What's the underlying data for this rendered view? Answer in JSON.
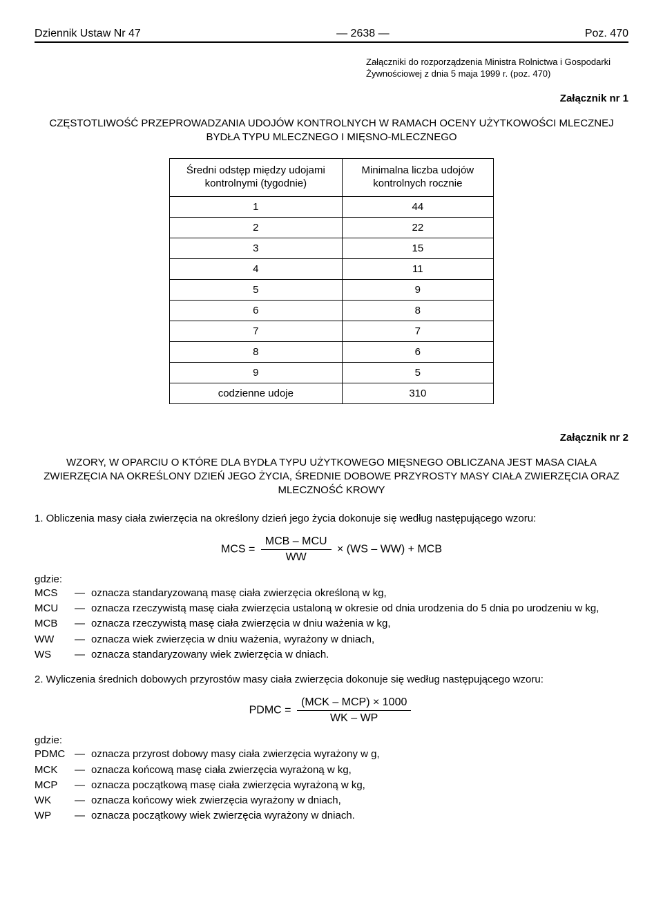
{
  "header": {
    "left": "Dziennik Ustaw Nr 47",
    "center": "— 2638 —",
    "right": "Poz. 470"
  },
  "attachment_note": "Załączniki do rozporządzenia Ministra Rolnictwa i Gospodarki Żywnościowej z dnia 5 maja 1999 r. (poz. 470)",
  "attachment1": {
    "label": "Załącznik nr 1",
    "title": "CZĘSTOTLIWOŚĆ PRZEPROWADZANIA UDOJÓW KONTROLNYCH W RAMACH OCENY UŻYTKOWOŚCI MLECZNEJ BYDŁA TYPU MLECZNEGO I MIĘSNO-MLECZNEGO",
    "table": {
      "col1_header": "Średni odstęp między udojami kontrolnymi (tygodnie)",
      "col2_header": "Minimalna liczba udojów kontrolnych rocznie",
      "rows": [
        [
          "1",
          "44"
        ],
        [
          "2",
          "22"
        ],
        [
          "3",
          "15"
        ],
        [
          "4",
          "11"
        ],
        [
          "5",
          "9"
        ],
        [
          "6",
          "8"
        ],
        [
          "7",
          "7"
        ],
        [
          "8",
          "6"
        ],
        [
          "9",
          "5"
        ],
        [
          "codzienne udoje",
          "310"
        ]
      ]
    }
  },
  "attachment2": {
    "label": "Załącznik nr 2",
    "title": "WZORY, W OPARCIU O KTÓRE DLA BYDŁA TYPU UŻYTKOWEGO MIĘSNEGO OBLICZANA JEST MASA CIAŁA ZWIERZĘCIA NA OKREŚLONY DZIEŃ JEGO ŻYCIA, ŚREDNIE DOBOWE PRZYROSTY MASY CIAŁA ZWIERZĘCIA ORAZ MLECZNOŚĆ KROWY",
    "section1": {
      "intro": "1. Obliczenia masy ciała zwierzęcia na określony dzień jego życia dokonuje się według następującego wzoru:",
      "formula": {
        "lhs": "MCS =",
        "num": "MCB – MCU",
        "den": "WW",
        "tail": "× (WS – WW) + MCB"
      },
      "where": "gdzie:",
      "defs": [
        {
          "sym": "MCS",
          "desc": "oznacza standaryzowaną masę ciała zwierzęcia określoną w kg,"
        },
        {
          "sym": "MCU",
          "desc": "oznacza rzeczywistą masę ciała zwierzęcia ustaloną w okresie od dnia urodzenia do 5 dnia po urodzeniu w kg,"
        },
        {
          "sym": "MCB",
          "desc": "oznacza rzeczywistą masę ciała zwierzęcia w dniu ważenia w kg,"
        },
        {
          "sym": "WW",
          "desc": "oznacza wiek zwierzęcia w dniu ważenia, wyrażony w dniach,"
        },
        {
          "sym": "WS",
          "desc": "oznacza standaryzowany wiek zwierzęcia w dniach."
        }
      ]
    },
    "section2": {
      "intro": "2. Wyliczenia średnich dobowych przyrostów masy ciała zwierzęcia dokonuje się według następującego wzoru:",
      "formula": {
        "lhs": "PDMC =",
        "num": "(MCK – MCP) × 1000",
        "den": "WK – WP"
      },
      "where": "gdzie:",
      "defs": [
        {
          "sym": "PDMC",
          "desc": "oznacza przyrost dobowy masy ciała zwierzęcia wyrażony w g,"
        },
        {
          "sym": "MCK",
          "desc": "oznacza końcową masę ciała zwierzęcia wyrażoną w kg,"
        },
        {
          "sym": "MCP",
          "desc": "oznacza początkową masę ciała zwierzęcia wyrażoną w kg,"
        },
        {
          "sym": "WK",
          "desc": "oznacza końcowy wiek zwierzęcia wyrażony w dniach,"
        },
        {
          "sym": "WP",
          "desc": "oznacza początkowy wiek zwierzęcia wyrażony w dniach."
        }
      ]
    }
  }
}
